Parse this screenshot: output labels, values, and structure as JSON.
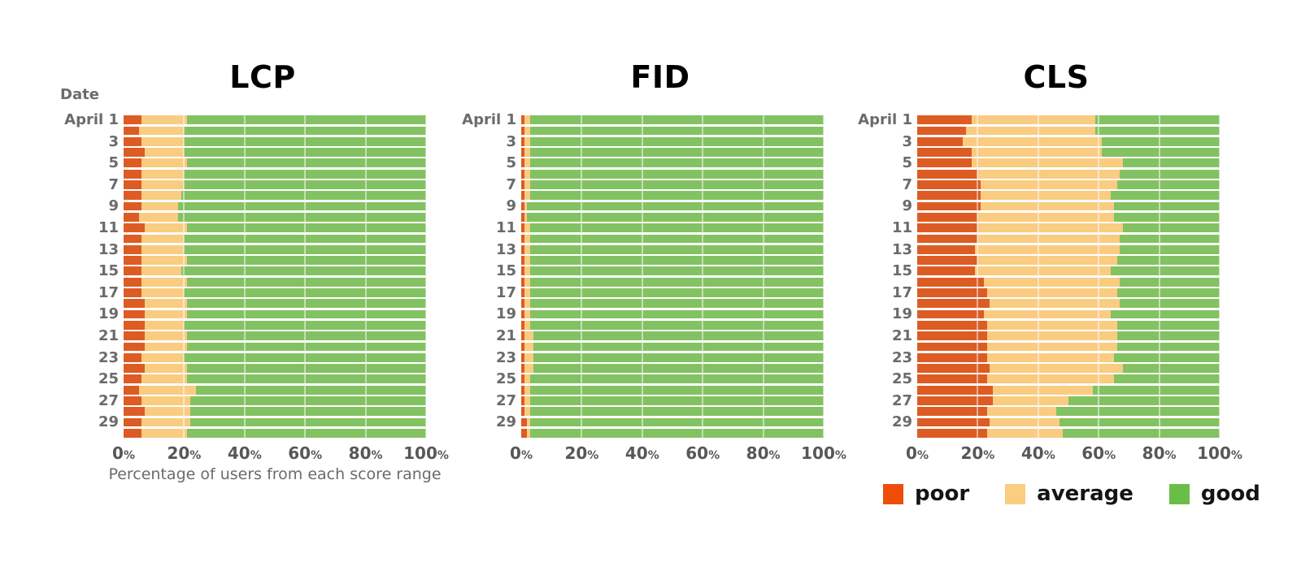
{
  "header": {
    "date_label": "Date"
  },
  "axis": {
    "ticks": [
      "0%",
      "20%",
      "40%",
      "60%",
      "80%",
      "100%"
    ],
    "xlabel": "Percentage of users from each score range"
  },
  "legend": {
    "items": [
      {
        "label": "poor",
        "color": "#ee4d09"
      },
      {
        "label": "average",
        "color": "#facd80"
      },
      {
        "label": "good",
        "color": "#69be47"
      }
    ]
  },
  "colors": {
    "bar_poor": "#dd5c24",
    "bar_average": "#f9cc81",
    "bar_good": "#83c262",
    "grid": "#e3e3e3",
    "tick_text": "#575757",
    "label_text": "#6b6b6b",
    "title_text": "#000000"
  },
  "chart_data": [
    {
      "type": "bar",
      "stacked": true,
      "orientation": "horizontal",
      "title": "LCP",
      "xlim": [
        0,
        100
      ],
      "xticks": [
        "0%",
        "20%",
        "40%",
        "60%",
        "80%",
        "100%"
      ],
      "xlabel": "Percentage of users from each score range",
      "row_labels": [
        "April 1",
        "",
        "3",
        "",
        "5",
        "",
        "7",
        "",
        "9",
        "",
        "11",
        "",
        "13",
        "",
        "15",
        "",
        "17",
        "",
        "19",
        "",
        "21",
        "",
        "23",
        "",
        "25",
        "",
        "27",
        "",
        "29",
        ""
      ],
      "series": [
        {
          "name": "poor",
          "color": "#dd5c24",
          "values": [
            6,
            5,
            6,
            7,
            6,
            6,
            6,
            6,
            6,
            5,
            7,
            6,
            6,
            6,
            6,
            6,
            6,
            7,
            7,
            7,
            7,
            7,
            6,
            7,
            6,
            5,
            6,
            7,
            6,
            6
          ]
        },
        {
          "name": "average",
          "color": "#f9cc81",
          "values": [
            15,
            15,
            14,
            13,
            15,
            14,
            14,
            13,
            12,
            13,
            14,
            14,
            14,
            15,
            13,
            15,
            14,
            14,
            14,
            13,
            14,
            14,
            14,
            14,
            15,
            19,
            16,
            15,
            16,
            15
          ]
        },
        {
          "name": "good",
          "color": "#83c262",
          "values": [
            79,
            80,
            80,
            80,
            79,
            80,
            80,
            81,
            82,
            82,
            79,
            80,
            80,
            79,
            81,
            79,
            80,
            79,
            79,
            80,
            79,
            79,
            80,
            79,
            79,
            76,
            78,
            78,
            78,
            79
          ]
        }
      ]
    },
    {
      "type": "bar",
      "stacked": true,
      "orientation": "horizontal",
      "title": "FID",
      "xlim": [
        0,
        100
      ],
      "xticks": [
        "0%",
        "20%",
        "40%",
        "60%",
        "80%",
        "100%"
      ],
      "xlabel": "",
      "row_labels": [
        "April 1",
        "",
        "3",
        "",
        "5",
        "",
        "7",
        "",
        "9",
        "",
        "11",
        "",
        "13",
        "",
        "15",
        "",
        "17",
        "",
        "19",
        "",
        "21",
        "",
        "23",
        "",
        "25",
        "",
        "27",
        "",
        "29",
        ""
      ],
      "series": [
        {
          "name": "poor",
          "color": "#dd5c24",
          "values": [
            1,
            1,
            1,
            1,
            1,
            1,
            1,
            1,
            1,
            1,
            1,
            1,
            1,
            1,
            1,
            1,
            1,
            1,
            1,
            1,
            1,
            1,
            1,
            1,
            1,
            1,
            1,
            1,
            2,
            2
          ]
        },
        {
          "name": "average",
          "color": "#f9cc81",
          "values": [
            2,
            2,
            2,
            2,
            2,
            2,
            2,
            2,
            1,
            1,
            2,
            2,
            2,
            2,
            2,
            2,
            2,
            2,
            2,
            2,
            3,
            3,
            3,
            3,
            2,
            2,
            2,
            2,
            1,
            1
          ]
        },
        {
          "name": "good",
          "color": "#83c262",
          "values": [
            97,
            97,
            97,
            97,
            97,
            97,
            97,
            97,
            98,
            98,
            97,
            97,
            97,
            97,
            97,
            97,
            97,
            97,
            97,
            97,
            96,
            96,
            96,
            96,
            97,
            97,
            97,
            97,
            97,
            97
          ]
        }
      ]
    },
    {
      "type": "bar",
      "stacked": true,
      "orientation": "horizontal",
      "title": "CLS",
      "xlim": [
        0,
        100
      ],
      "xticks": [
        "0%",
        "20%",
        "40%",
        "60%",
        "80%",
        "100%"
      ],
      "xlabel": "",
      "row_labels": [
        "April 1",
        "",
        "3",
        "",
        "5",
        "",
        "7",
        "",
        "9",
        "",
        "11",
        "",
        "13",
        "",
        "15",
        "",
        "17",
        "",
        "19",
        "",
        "21",
        "",
        "23",
        "",
        "25",
        "",
        "27",
        "",
        "29",
        ""
      ],
      "series": [
        {
          "name": "poor",
          "color": "#dd5c24",
          "values": [
            18,
            16,
            15,
            18,
            18,
            20,
            21,
            21,
            21,
            20,
            20,
            20,
            19,
            20,
            19,
            22,
            23,
            24,
            22,
            23,
            23,
            23,
            23,
            24,
            23,
            25,
            25,
            23,
            24,
            23
          ]
        },
        {
          "name": "average",
          "color": "#f9cc81",
          "values": [
            41,
            43,
            46,
            43,
            50,
            47,
            45,
            43,
            44,
            45,
            48,
            47,
            48,
            46,
            45,
            45,
            43,
            43,
            42,
            43,
            43,
            43,
            42,
            44,
            42,
            33,
            25,
            23,
            23,
            25
          ]
        },
        {
          "name": "good",
          "color": "#83c262",
          "values": [
            41,
            41,
            39,
            39,
            32,
            33,
            34,
            36,
            35,
            35,
            32,
            33,
            33,
            34,
            36,
            33,
            34,
            33,
            36,
            34,
            34,
            34,
            35,
            32,
            35,
            42,
            50,
            54,
            53,
            52
          ]
        }
      ]
    }
  ]
}
